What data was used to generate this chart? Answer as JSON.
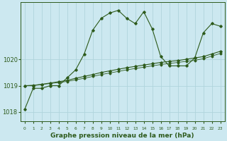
{
  "title": "Graphe pression niveau de la mer (hPa)",
  "background_color": "#cce8f0",
  "grid_color": "#b0d4dc",
  "line_color": "#2d5a1b",
  "x_hours": [
    0,
    1,
    2,
    3,
    4,
    5,
    6,
    7,
    8,
    9,
    10,
    11,
    12,
    13,
    14,
    15,
    16,
    17,
    18,
    19,
    20,
    21,
    22,
    23
  ],
  "series1": [
    1018.1,
    1018.9,
    1018.9,
    1019.0,
    1019.0,
    1019.3,
    1019.6,
    1020.2,
    1021.1,
    1021.55,
    1021.75,
    1021.85,
    1021.55,
    1021.35,
    1021.8,
    1021.15,
    1020.1,
    1019.75,
    1019.75,
    1019.75,
    1020.05,
    1021.0,
    1021.35,
    1021.25
  ],
  "series2": [
    1019.0,
    1019.0,
    1019.05,
    1019.1,
    1019.15,
    1019.2,
    1019.28,
    1019.35,
    1019.42,
    1019.5,
    1019.56,
    1019.62,
    1019.68,
    1019.73,
    1019.78,
    1019.83,
    1019.88,
    1019.92,
    1019.95,
    1020.0,
    1020.05,
    1020.1,
    1020.2,
    1020.3
  ],
  "series3": [
    1019.0,
    1019.02,
    1019.05,
    1019.08,
    1019.12,
    1019.16,
    1019.22,
    1019.28,
    1019.35,
    1019.42,
    1019.48,
    1019.54,
    1019.6,
    1019.65,
    1019.7,
    1019.75,
    1019.8,
    1019.84,
    1019.88,
    1019.92,
    1019.96,
    1020.02,
    1020.12,
    1020.22
  ],
  "ylim": [
    1017.65,
    1022.15
  ],
  "yticks": [
    1018,
    1019,
    1020
  ],
  "marker": "D",
  "marker_size": 1.8,
  "linewidth": 0.8,
  "xlabel_fontsize": 6.5,
  "ytick_fontsize": 6,
  "xtick_fontsize": 4.2
}
